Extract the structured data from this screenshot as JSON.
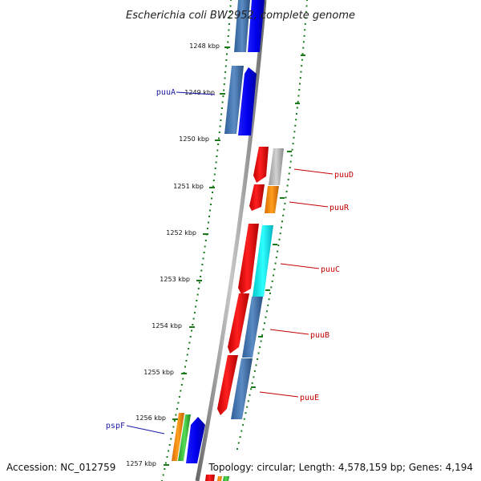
{
  "title": "Escherichia coli BW2952, complete genome",
  "footer": {
    "accession": "Accession: NC_012759",
    "summary": "Topology: circular; Length: 4,578,159 bp; Genes: 4,194"
  },
  "colors": {
    "backbone": "#8a8a8a",
    "dots": "#1a7a1a",
    "forward_label": "#1a1aa8",
    "reverse_label": "#c40000"
  },
  "ticks": [
    {
      "label": "1248 kbp"
    },
    {
      "label": "1249 kbp"
    },
    {
      "label": "1250 kbp"
    },
    {
      "label": "1251 kbp"
    },
    {
      "label": "1252 kbp"
    },
    {
      "label": "1253 kbp"
    },
    {
      "label": "1254 kbp"
    },
    {
      "label": "1255 kbp"
    },
    {
      "label": "1256 kbp"
    },
    {
      "label": "1257 kbp"
    }
  ],
  "labels": [
    {
      "name": "puuA",
      "strand": "forward"
    },
    {
      "name": "puuD",
      "strand": "reverse"
    },
    {
      "name": "puuR",
      "strand": "reverse"
    },
    {
      "name": "puuC",
      "strand": "reverse"
    },
    {
      "name": "puuB",
      "strand": "reverse"
    },
    {
      "name": "puuE",
      "strand": "reverse"
    },
    {
      "name": "pspF",
      "strand": "forward"
    }
  ]
}
